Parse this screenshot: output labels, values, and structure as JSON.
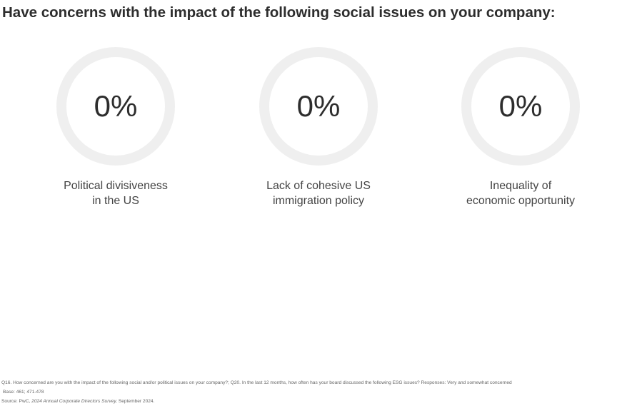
{
  "title": "Have concerns with the impact of the following social issues on your company:",
  "stats": [
    {
      "value": "0%",
      "percent": 0,
      "label_line1": "Political divisiveness",
      "label_line2": "in the US"
    },
    {
      "value": "0%",
      "percent": 0,
      "label_line1": "Lack of cohesive US",
      "label_line2": "immigration policy"
    },
    {
      "value": "0%",
      "percent": 0,
      "label_line1": "Inequality of",
      "label_line2": "economic opportunity"
    }
  ],
  "colors": {
    "ring_track": "#efefef",
    "text": "#2d2d2d"
  },
  "footnotes": {
    "question": "Q16. How concerned are you with the impact of the following social and/or political issues on your company?; Q20. In the last 12 months, how often has your board discussed the following ESG issues? Responses: Very and somewhat concerned",
    "base": "Base: 461; 471-478",
    "source_prefix": "Source: PwC, ",
    "source_title": "2024 Annual Corporate Directors Survey,",
    "source_suffix": " September 2024."
  }
}
